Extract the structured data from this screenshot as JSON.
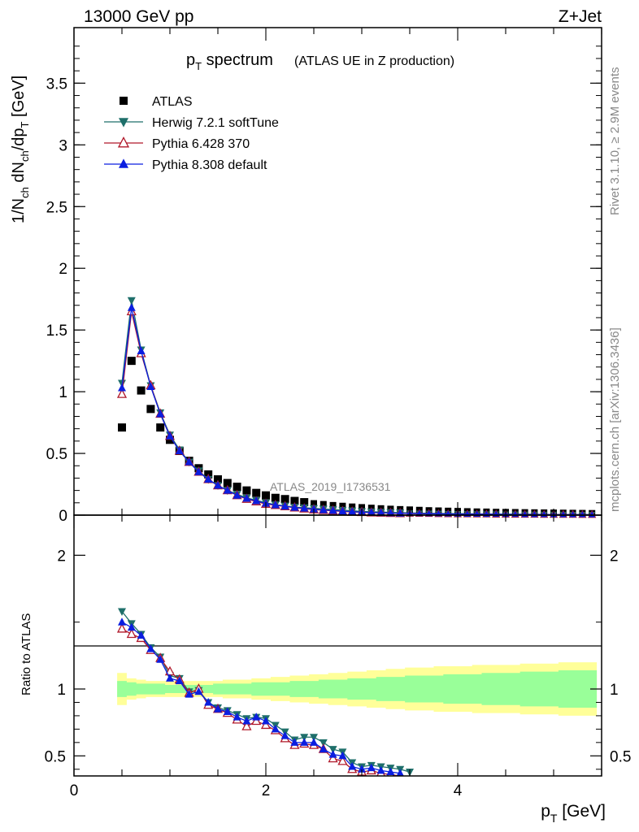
{
  "header": {
    "energy": "13000 GeV pp",
    "process": "Z+Jet"
  },
  "side_labels": {
    "rivet": "Rivet 3.1.10, ≥ 2.9M events",
    "mcplots": "mcplots.cern.ch [arXiv:1306.3436]"
  },
  "title": {
    "main_p": "p",
    "main_sub": "T",
    "main_rest": " spectrum",
    "sub": "(ATLAS UE in Z production)"
  },
  "ylabel": {
    "p1": "1/N",
    "s1": "ch",
    "p2": " dN",
    "s2": "ch",
    "p3": "/dp",
    "s3": "T",
    "p4": " [GeV]"
  },
  "ratio_ylabel": "Ratio to ATLAS",
  "xlabel": {
    "p": "p",
    "sub": "T",
    "unit": " [GeV]"
  },
  "watermark": "ATLAS_2019_I1736531",
  "colors": {
    "atlas": "#000000",
    "herwig": "#1e6f6a",
    "pythia6": "#b0182a",
    "pythia8": "#0b1ee0",
    "band_inner": "#99ff99",
    "band_outer": "#ffff99"
  },
  "chart_data": {
    "type": "line",
    "x": [
      0.5,
      0.6,
      0.7,
      0.8,
      0.9,
      1.0,
      1.1,
      1.2,
      1.3,
      1.4,
      1.5,
      1.6,
      1.7,
      1.8,
      1.9,
      2.0,
      2.1,
      2.2,
      2.3,
      2.4,
      2.5,
      2.6,
      2.7,
      2.8,
      2.9,
      3.0,
      3.1,
      3.2,
      3.3,
      3.4,
      3.5,
      3.6,
      3.7,
      3.8,
      3.9,
      4.0,
      4.1,
      4.2,
      4.3,
      4.4,
      4.5,
      4.6,
      4.7,
      4.8,
      4.9,
      5.0,
      5.1,
      5.2,
      5.3,
      5.4
    ],
    "xlim": [
      0,
      5.5
    ],
    "xticks": [
      "0",
      "2",
      "4"
    ],
    "main": {
      "ylim": [
        0,
        3.95
      ],
      "yticks": [
        "0",
        "0.5",
        "1",
        "1.5",
        "2",
        "2.5",
        "3",
        "3.5"
      ],
      "series": [
        {
          "name": "ATLAS",
          "marker": "square",
          "values": [
            0.71,
            1.25,
            1.01,
            0.86,
            0.71,
            0.61,
            0.52,
            0.44,
            0.38,
            0.33,
            0.29,
            0.26,
            0.23,
            0.2,
            0.18,
            0.16,
            0.14,
            0.13,
            0.115,
            0.105,
            0.095,
            0.088,
            0.08,
            0.074,
            0.068,
            0.063,
            0.058,
            0.054,
            0.05,
            0.047,
            0.044,
            0.041,
            0.038,
            0.036,
            0.034,
            0.032,
            0.03,
            0.028,
            0.027,
            0.025,
            0.024,
            0.023,
            0.022,
            0.021,
            0.02,
            0.019,
            0.018,
            0.017,
            0.016,
            0.015
          ]
        },
        {
          "name": "Herwig 7.2.1 softTune",
          "marker": "triangle-down",
          "values": [
            1.07,
            1.74,
            1.34,
            1.05,
            0.83,
            0.65,
            0.53,
            0.43,
            0.36,
            0.29,
            0.24,
            0.2,
            0.17,
            0.14,
            0.12,
            0.1,
            0.085,
            0.075,
            0.065,
            0.06,
            0.055,
            0.05,
            0.045,
            0.04,
            0.035,
            0.03,
            0.027,
            0.025,
            0.022,
            0.02,
            0.018,
            0.016,
            0.015,
            0.014,
            0.013,
            0.012,
            0.011,
            0.01,
            0.009,
            0.009,
            0.008,
            0.008,
            0.007,
            0.007,
            0.006,
            0.006,
            0.006,
            0.005,
            0.005,
            0.005
          ]
        },
        {
          "name": "Pythia 6.428 370",
          "marker": "triangle-up-open",
          "values": [
            0.98,
            1.65,
            1.31,
            1.05,
            0.82,
            0.64,
            0.52,
            0.43,
            0.35,
            0.29,
            0.24,
            0.2,
            0.16,
            0.13,
            0.11,
            0.09,
            0.08,
            0.07,
            0.06,
            0.052,
            0.045,
            0.04,
            0.035,
            0.03,
            0.026,
            0.023,
            0.02,
            0.018,
            0.016,
            0.014,
            0.013,
            0.012,
            0.011,
            0.01,
            0.009,
            0.008,
            0.008,
            0.007,
            0.007,
            0.006,
            0.006,
            0.005,
            0.005,
            0.005,
            0.004,
            0.004,
            0.004,
            0.004,
            0.003,
            0.003
          ]
        },
        {
          "name": "Pythia 8.308 default",
          "marker": "triangle-up",
          "values": [
            1.03,
            1.68,
            1.33,
            1.04,
            0.82,
            0.64,
            0.52,
            0.43,
            0.35,
            0.29,
            0.24,
            0.2,
            0.16,
            0.135,
            0.115,
            0.095,
            0.082,
            0.072,
            0.062,
            0.055,
            0.048,
            0.042,
            0.037,
            0.032,
            0.028,
            0.024,
            0.021,
            0.019,
            0.017,
            0.015,
            0.014,
            0.013,
            0.012,
            0.011,
            0.01,
            0.009,
            0.008,
            0.008,
            0.007,
            0.007,
            0.006,
            0.006,
            0.005,
            0.005,
            0.005,
            0.004,
            0.004,
            0.004,
            0.004,
            0.003
          ]
        }
      ]
    },
    "ratio": {
      "ylabel": "Ratio to ATLAS",
      "ylim": [
        0.35,
        2.3
      ],
      "yticks": [
        "0.5",
        "1",
        "2"
      ],
      "band_inner": [
        0.06,
        0.05,
        0.04,
        0.04,
        0.04,
        0.03,
        0.03,
        0.03,
        0.03,
        0.03,
        0.04,
        0.04,
        0.04,
        0.04,
        0.05,
        0.05,
        0.05,
        0.05,
        0.06,
        0.06,
        0.06,
        0.07,
        0.07,
        0.07,
        0.08,
        0.08,
        0.08,
        0.09,
        0.09,
        0.09,
        0.1,
        0.1,
        0.1,
        0.1,
        0.11,
        0.11,
        0.11,
        0.11,
        0.12,
        0.12,
        0.12,
        0.12,
        0.13,
        0.13,
        0.13,
        0.13,
        0.14,
        0.14,
        0.14,
        0.14
      ],
      "band_outer": [
        0.12,
        0.08,
        0.07,
        0.06,
        0.06,
        0.06,
        0.06,
        0.06,
        0.06,
        0.06,
        0.06,
        0.07,
        0.07,
        0.07,
        0.08,
        0.08,
        0.09,
        0.09,
        0.1,
        0.1,
        0.11,
        0.11,
        0.12,
        0.12,
        0.13,
        0.13,
        0.14,
        0.14,
        0.15,
        0.15,
        0.16,
        0.16,
        0.16,
        0.17,
        0.17,
        0.17,
        0.17,
        0.18,
        0.18,
        0.18,
        0.18,
        0.18,
        0.19,
        0.19,
        0.19,
        0.19,
        0.2,
        0.2,
        0.2,
        0.2
      ],
      "series": [
        {
          "name": "Herwig 7.2.1 softTune",
          "values": [
            1.58,
            1.49,
            1.41,
            1.31,
            1.24,
            1.1,
            1.08,
            0.98,
            0.99,
            0.9,
            0.86,
            0.84,
            0.81,
            0.78,
            0.79,
            0.78,
            0.73,
            0.68,
            0.62,
            0.64,
            0.64,
            0.6,
            0.55,
            0.53,
            0.45,
            0.42,
            0.43,
            0.42,
            0.41,
            0.4,
            0.38
          ]
        },
        {
          "name": "Pythia 6.428 370",
          "values": [
            1.45,
            1.41,
            1.38,
            1.29,
            1.23,
            1.13,
            1.07,
            0.97,
            1.0,
            0.88,
            0.85,
            0.82,
            0.77,
            0.72,
            0.76,
            0.73,
            0.69,
            0.63,
            0.58,
            0.59,
            0.58,
            0.55,
            0.48,
            0.46,
            0.4,
            0.38,
            0.39,
            0.37,
            0.36,
            0.35
          ]
        },
        {
          "name": "Pythia 8.308 default",
          "values": [
            1.5,
            1.46,
            1.4,
            1.3,
            1.22,
            1.08,
            1.06,
            0.96,
            0.98,
            0.9,
            0.85,
            0.83,
            0.79,
            0.76,
            0.79,
            0.76,
            0.7,
            0.65,
            0.6,
            0.6,
            0.6,
            0.55,
            0.51,
            0.5,
            0.42,
            0.4,
            0.41,
            0.39,
            0.38,
            0.37
          ]
        }
      ]
    }
  }
}
